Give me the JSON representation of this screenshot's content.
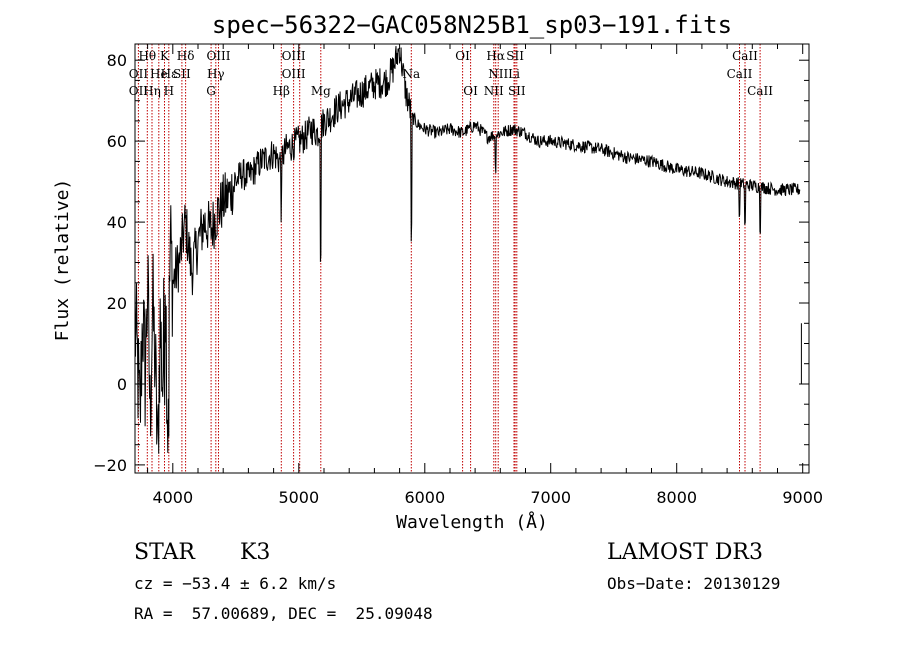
{
  "chart_data": {
    "type": "line",
    "title": "spec−56322−GAC058N25B1_sp03−191.fits",
    "xlabel": "Wavelength (Å)",
    "ylabel": "Flux (relative)",
    "xlim": [
      3700,
      9050
    ],
    "ylim": [
      -22,
      84
    ],
    "xticks": [
      4000,
      5000,
      6000,
      7000,
      8000,
      9000
    ],
    "yticks": [
      -20,
      0,
      20,
      40,
      60,
      80
    ],
    "ytick_labels": [
      "−20",
      "0",
      "20",
      "40",
      "60",
      "80"
    ],
    "grid": false,
    "series": [
      {
        "x": [
          3700,
          3720,
          3740,
          3760,
          3780,
          3800,
          3820,
          3840,
          3860,
          3880,
          3900,
          3920,
          3940,
          3960,
          3980,
          4000,
          4050,
          4100,
          4150,
          4200,
          4250,
          4300,
          4350,
          4400,
          4450,
          4500,
          4550,
          4600,
          4650,
          4700,
          4750,
          4800,
          4850,
          4900,
          4950,
          5000,
          5050,
          5100,
          5150,
          5200,
          5250,
          5300,
          5400,
          5500,
          5600,
          5700,
          5750,
          5800,
          5850,
          5900,
          5950,
          6000,
          6100,
          6200,
          6300,
          6400,
          6500,
          6600,
          6700,
          6800,
          6900,
          7000,
          7200,
          7400,
          7600,
          7800,
          8000,
          8200,
          8400,
          8600,
          8800,
          8980
        ],
        "y": [
          15,
          5,
          -10,
          18,
          2,
          25,
          -8,
          20,
          5,
          -18,
          15,
          0,
          30,
          -10,
          35,
          25,
          30,
          40,
          28,
          35,
          40,
          38,
          42,
          45,
          47,
          50,
          52,
          51,
          53,
          55,
          56,
          57,
          55,
          58,
          59,
          60,
          61,
          63,
          62,
          65,
          66,
          68,
          70,
          72,
          74,
          75,
          78,
          83,
          72,
          66,
          64,
          63,
          62,
          63,
          62,
          64,
          61,
          62,
          63,
          62,
          60,
          60,
          59,
          58,
          56,
          55,
          53,
          52,
          50,
          49,
          48,
          48
        ]
      }
    ],
    "spectral_lines": [
      {
        "label": "Hθ",
        "wl": 3798,
        "row": 0
      },
      {
        "label": "OII",
        "wl": 3727,
        "row": 1
      },
      {
        "label": "OII",
        "wl": 3727,
        "row": 2
      },
      {
        "label": "He",
        "wl": 3889,
        "row": 1
      },
      {
        "label": "Hη",
        "wl": 3835,
        "row": 2
      },
      {
        "label": "K",
        "wl": 3934,
        "row": 0
      },
      {
        "label": "Hε",
        "wl": 3970,
        "row": 1
      },
      {
        "label": "H",
        "wl": 3968,
        "row": 2
      },
      {
        "label": "Hδ",
        "wl": 4102,
        "row": 0
      },
      {
        "label": "SII",
        "wl": 4072,
        "row": 1
      },
      {
        "label": "OIII",
        "wl": 4363,
        "row": 0
      },
      {
        "label": "Hγ",
        "wl": 4341,
        "row": 1
      },
      {
        "label": "G",
        "wl": 4304,
        "row": 2
      },
      {
        "label": "OIII",
        "wl": 4959,
        "row": 0
      },
      {
        "label": "OIII",
        "wl": 4959,
        "row": 1
      },
      {
        "label": "Hβ",
        "wl": 4861,
        "row": 2
      },
      {
        "label": "Mg",
        "wl": 5175,
        "row": 2
      },
      {
        "label": "Na",
        "wl": 5893,
        "row": 1
      },
      {
        "label": "OI",
        "wl": 6300,
        "row": 0
      },
      {
        "label": "OI",
        "wl": 6364,
        "row": 2
      },
      {
        "label": "Hα",
        "wl": 6563,
        "row": 0
      },
      {
        "label": "SII",
        "wl": 6717,
        "row": 0
      },
      {
        "label": "NII",
        "wl": 6583,
        "row": 1
      },
      {
        "label": "Li",
        "wl": 6708,
        "row": 1
      },
      {
        "label": "NII",
        "wl": 6548,
        "row": 2
      },
      {
        "label": "SII",
        "wl": 6731,
        "row": 2
      },
      {
        "label": "CaII",
        "wl": 8542,
        "row": 0
      },
      {
        "label": "CaII",
        "wl": 8498,
        "row": 1
      },
      {
        "label": "CaII",
        "wl": 8662,
        "row": 2
      }
    ],
    "marker_lines_wl": [
      3727,
      3798,
      3835,
      3889,
      3934,
      3968,
      4072,
      4102,
      4304,
      4341,
      4363,
      4861,
      4959,
      5007,
      5175,
      5893,
      6300,
      6364,
      6548,
      6563,
      6583,
      6708,
      6717,
      6731,
      8498,
      8542,
      8662
    ],
    "marker_color": "#c00000"
  },
  "info": {
    "class_label": "STAR",
    "subclass": "K3",
    "survey": "LAMOST DR3",
    "velocity": "cz = −53.4 ± 6.2 km/s",
    "obs_date": "Obs−Date: 20130129",
    "coords": "RA =  57.00689, DEC =  25.09048"
  }
}
